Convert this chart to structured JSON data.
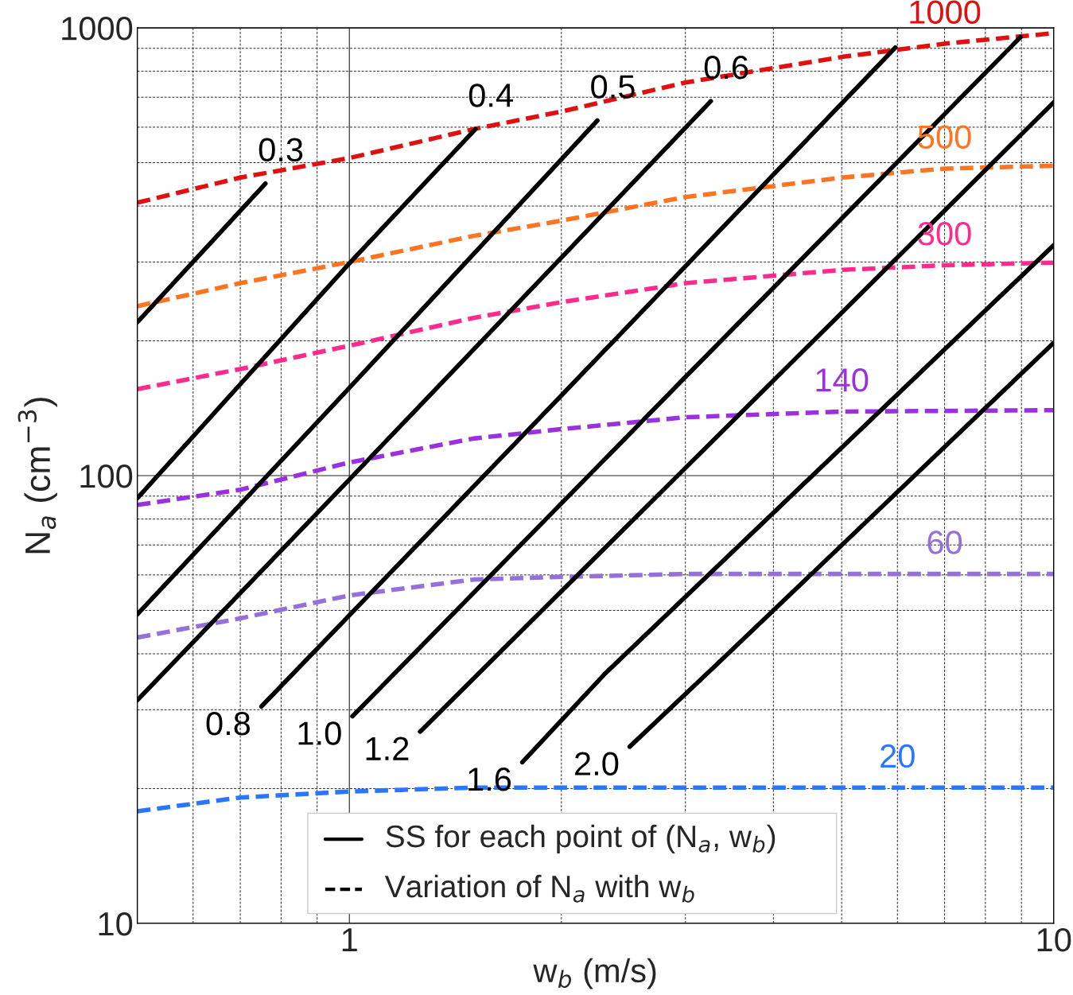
{
  "chart_data": {
    "type": "line",
    "xlabel": "w$_{b}$ (m/s)",
    "ylabel": "N$_{a}$ (cm$^{−3}$)",
    "log": "xy",
    "xlim": [
      0.5,
      10
    ],
    "ylim": [
      10,
      1000
    ],
    "xticks": [
      {
        "value": 0.6,
        "label": null
      },
      {
        "value": 0.7,
        "label": null
      },
      {
        "value": 0.8,
        "label": null
      },
      {
        "value": 0.9,
        "label": null
      },
      1,
      {
        "value": 2,
        "label": null
      },
      {
        "value": 3,
        "label": null
      },
      {
        "value": 4,
        "label": null
      },
      {
        "value": 5,
        "label": null
      },
      {
        "value": 6,
        "label": null
      },
      {
        "value": 7,
        "label": null
      },
      {
        "value": 8,
        "label": null
      },
      {
        "value": 9,
        "label": null
      },
      10
    ],
    "yticks": [
      10,
      {
        "value": 20,
        "label": null
      },
      {
        "value": 30,
        "label": null
      },
      {
        "value": 40,
        "label": null
      },
      {
        "value": 50,
        "label": null
      },
      {
        "value": 60,
        "label": null
      },
      {
        "value": 70,
        "label": null
      },
      {
        "value": 80,
        "label": null
      },
      {
        "value": 90,
        "label": null
      },
      100,
      {
        "value": 200,
        "label": null
      },
      {
        "value": 300,
        "label": null
      },
      {
        "value": 400,
        "label": null
      },
      {
        "value": 500,
        "label": null
      },
      {
        "value": 600,
        "label": null
      },
      {
        "value": 700,
        "label": null
      },
      {
        "value": 800,
        "label": null
      },
      {
        "value": 900,
        "label": null
      },
      1000
    ],
    "grid": true,
    "annotations": [
      "SS for each point of (N$_{a}$, w$_{b}$)",
      "Variation of N$_{a}$ with w$_{b}$"
    ],
    "series": [
      {
        "name": "1000",
        "color": "#e01010",
        "line_style": "dashed",
        "x": [
          0.5,
          0.7,
          1,
          1.5,
          2,
          3,
          5,
          7,
          10
        ],
        "values": [
          407,
          463,
          512,
          594,
          650,
          755,
          861,
          922,
          973
        ]
      },
      {
        "name": "500",
        "color": "#ff7420",
        "line_style": "dashed",
        "x": [
          0.5,
          0.7,
          1,
          1.5,
          2,
          3,
          5,
          7,
          10
        ],
        "values": [
          239,
          269,
          300,
          343,
          371,
          419,
          463,
          485,
          492
        ]
      },
      {
        "name": "300",
        "color": "#ff2a8c",
        "line_style": "dashed",
        "x": [
          0.5,
          0.7,
          1,
          1.5,
          2,
          3,
          5,
          7,
          10
        ],
        "values": [
          156,
          173,
          195,
          225,
          244,
          269,
          288,
          295,
          299
        ]
      },
      {
        "name": "140",
        "color": "#9b30e0",
        "line_style": "dashed",
        "x": [
          0.5,
          0.7,
          1,
          1.5,
          2,
          3,
          5,
          10
        ],
        "values": [
          86,
          93,
          107,
          121,
          127,
          135,
          139,
          140
        ]
      },
      {
        "name": "60",
        "color": "#9370db",
        "line_style": "dashed",
        "x": [
          0.5,
          0.7,
          1,
          1.5,
          2,
          3,
          5,
          7,
          10
        ],
        "values": [
          43.5,
          48,
          54,
          58.6,
          59.4,
          60.3,
          60.3,
          60.3,
          60.3
        ]
      },
      {
        "name": "20",
        "color": "#2a76ff",
        "line_style": "dashed",
        "x": [
          0.5,
          0.7,
          1,
          1.5,
          2,
          3,
          6,
          10
        ],
        "values": [
          17.8,
          19.1,
          19.7,
          20.1,
          20.1,
          20.1,
          20.1,
          20.1
        ]
      },
      {
        "name": "0.3",
        "color": "#000000",
        "line_style": "solid",
        "x": [
          0.5,
          0.76
        ],
        "values": [
          220,
          449
        ]
      },
      {
        "name": "0.4",
        "color": "#000000",
        "line_style": "solid",
        "x": [
          0.5,
          1,
          1.51
        ],
        "values": [
          89,
          298,
          594
        ]
      },
      {
        "name": "0.5",
        "color": "#000000",
        "line_style": "solid",
        "x": [
          0.5,
          1,
          2.25
        ],
        "values": [
          49,
          157,
          621
        ]
      },
      {
        "name": "0.6",
        "color": "#000000",
        "line_style": "solid",
        "x": [
          0.5,
          1,
          3.26
        ],
        "values": [
          31.5,
          98,
          686
        ]
      },
      {
        "name": "0.8",
        "color": "#000000",
        "line_style": "solid",
        "x": [
          0.75,
          2,
          5.96
        ],
        "values": [
          30.5,
          151,
          904
        ]
      },
      {
        "name": "1.0",
        "color": "#000000",
        "line_style": "solid",
        "x": [
          1.01,
          3,
          8.97
        ],
        "values": [
          29,
          166,
          953
        ]
      },
      {
        "name": "1.2",
        "color": "#000000",
        "line_style": "solid",
        "x": [
          1.26,
          3,
          10
        ],
        "values": [
          26.8,
          104,
          682
        ]
      },
      {
        "name": "1.6",
        "color": "#000000",
        "line_style": "solid",
        "x": [
          1.76,
          2.31,
          10
        ],
        "values": [
          22.9,
          36.2,
          327
        ]
      },
      {
        "name": "2.0",
        "color": "#000000",
        "line_style": "solid",
        "x": [
          2.5,
          3.32,
          10
        ],
        "values": [
          24.8,
          37.8,
          198
        ]
      }
    ]
  }
}
